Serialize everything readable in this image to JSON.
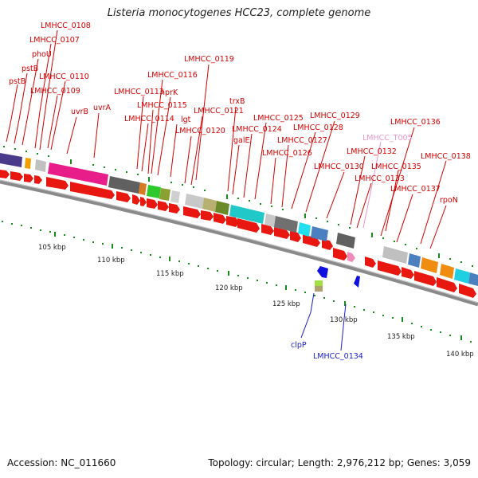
{
  "title": "Listeria monocytogenes HCC23, complete genome",
  "footer": {
    "accession": "Accession: NC_011660",
    "summary": "Topology: circular; Length: 2,976,212 bp; Genes: 3,059"
  },
  "colors": {
    "forward_gene": "#e8170f",
    "forward_label": "#d40000",
    "reverse_label": "#1a1ad0",
    "rna_label": "#e897c8",
    "backbone": "#888888",
    "ticks": "#1a8a1a"
  },
  "axis_labels": [
    "105 kbp",
    "110 kbp",
    "115 kbp",
    "120 kbp",
    "125 kbp",
    "130 kbp",
    "135 kbp",
    "140 kbp"
  ],
  "forward_labels": [
    "pstB",
    "pstB",
    "phoU",
    "LMHCC_0107",
    "LMHCC_0108",
    "LMHCC_0109",
    "LMHCC_0110",
    "uvrB",
    "uvrA",
    "LMHCC_0113",
    "LMHCC_0114",
    "LMHCC_0115",
    "LMHCC_0116",
    "hprK",
    "lgt",
    "LMHCC_0119",
    "LMHCC_0120",
    "LMHCC_0121",
    "trxB",
    "galE",
    "LMHCC_0124",
    "LMHCC_0125",
    "LMHCC_0126",
    "LMHCC_0127",
    "LMHCC_0128",
    "LMHCC_0129",
    "LMHCC_0130",
    "LMHCC_0132",
    "LMHCC_0133",
    "LMHCC_0135",
    "LMHCC_0136",
    "LMHCC_0137",
    "LMHCC_0138",
    "rpoN"
  ],
  "rna_labels": [
    "LMHCC_T005"
  ],
  "reverse_labels": [
    "clpP",
    "LMHCC_0134"
  ]
}
